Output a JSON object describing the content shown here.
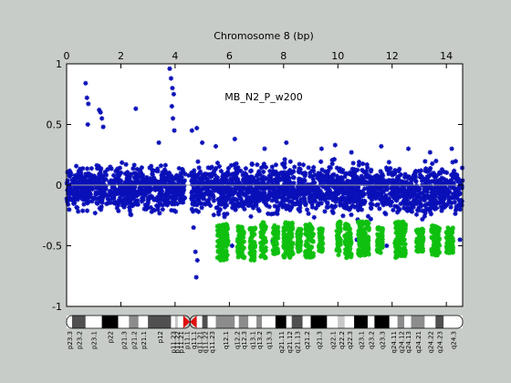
{
  "chart_data": {
    "type": "scatter",
    "title": "Chromosome 8 (bp)",
    "annotation": "MB_N2_P_w200",
    "xlabel": "Chromosome 8 (bp)",
    "xlim": [
      0,
      14.6
    ],
    "xticks": [
      0,
      2,
      4,
      6,
      8,
      10,
      12,
      14
    ],
    "ylim": [
      -1,
      1
    ],
    "yticks": [
      -1,
      -0.5,
      0,
      0.5,
      1
    ],
    "baseline": 0,
    "centromere_x": 4.55,
    "colors": {
      "background": "#c8ccc8",
      "plot_area": "#ffffff",
      "normal_points": "#0a10b8",
      "loss_points": "#10c010",
      "baseline": "#a0a0a0",
      "centromere": "#e01010"
    },
    "series": [
      {
        "color": "#0a10b8",
        "segments": [
          {
            "x": [
              0.0,
              4.4
            ],
            "y_range": [
              -0.28,
              0.22
            ]
          },
          {
            "x": [
              4.6,
              14.6
            ],
            "y_range": [
              -0.32,
              0.25
            ]
          }
        ],
        "outliers": [
          [
            0.7,
            0.84
          ],
          [
            0.75,
            0.72
          ],
          [
            0.8,
            0.67
          ],
          [
            0.78,
            0.5
          ],
          [
            1.2,
            0.62
          ],
          [
            1.25,
            0.6
          ],
          [
            1.3,
            0.55
          ],
          [
            1.35,
            0.48
          ],
          [
            2.55,
            0.63
          ],
          [
            3.8,
            0.96
          ],
          [
            3.85,
            0.88
          ],
          [
            3.9,
            0.8
          ],
          [
            3.95,
            0.75
          ],
          [
            3.88,
            0.65
          ],
          [
            3.92,
            0.55
          ],
          [
            3.97,
            0.45
          ],
          [
            3.4,
            0.35
          ],
          [
            4.62,
            0.45
          ],
          [
            4.8,
            0.47
          ],
          [
            4.7,
            0.12
          ],
          [
            4.5,
            0.08
          ],
          [
            4.68,
            -0.35
          ],
          [
            4.75,
            -0.55
          ],
          [
            4.82,
            -0.62
          ],
          [
            4.78,
            -0.76
          ],
          [
            5.0,
            0.35
          ],
          [
            5.5,
            0.32
          ],
          [
            6.2,
            0.38
          ],
          [
            7.3,
            0.3
          ],
          [
            8.1,
            0.35
          ],
          [
            9.4,
            0.3
          ],
          [
            9.9,
            0.33
          ],
          [
            10.5,
            0.27
          ],
          [
            11.6,
            0.32
          ],
          [
            12.6,
            0.3
          ],
          [
            13.4,
            0.27
          ],
          [
            14.2,
            0.3
          ],
          [
            6.1,
            -0.5
          ],
          [
            6.9,
            -0.55
          ],
          [
            7.6,
            -0.46
          ],
          [
            8.2,
            -0.48
          ],
          [
            10.7,
            -0.45
          ],
          [
            11.8,
            -0.5
          ],
          [
            13.0,
            -0.52
          ],
          [
            14.5,
            -0.45
          ]
        ]
      },
      {
        "color": "#10c010",
        "clusters": [
          {
            "x": [
              5.55,
              5.95
            ],
            "y_range": [
              -0.62,
              -0.32
            ]
          },
          {
            "x": [
              6.3,
              6.55
            ],
            "y_range": [
              -0.6,
              -0.33
            ]
          },
          {
            "x": [
              6.75,
              6.95
            ],
            "y_range": [
              -0.62,
              -0.35
            ]
          },
          {
            "x": [
              7.15,
              7.35
            ],
            "y_range": [
              -0.6,
              -0.3
            ]
          },
          {
            "x": [
              7.6,
              7.8
            ],
            "y_range": [
              -0.58,
              -0.33
            ]
          },
          {
            "x": [
              8.0,
              8.35
            ],
            "y_range": [
              -0.6,
              -0.3
            ]
          },
          {
            "x": [
              8.5,
              8.65
            ],
            "y_range": [
              -0.55,
              -0.35
            ]
          },
          {
            "x": [
              8.8,
              9.1
            ],
            "y_range": [
              -0.6,
              -0.32
            ]
          },
          {
            "x": [
              9.3,
              9.45
            ],
            "y_range": [
              -0.55,
              -0.35
            ]
          },
          {
            "x": [
              9.95,
              10.1
            ],
            "y_range": [
              -0.58,
              -0.3
            ]
          },
          {
            "x": [
              10.25,
              10.5
            ],
            "y_range": [
              -0.6,
              -0.32
            ]
          },
          {
            "x": [
              10.75,
              11.15
            ],
            "y_range": [
              -0.58,
              -0.3
            ]
          },
          {
            "x": [
              11.45,
              11.65
            ],
            "y_range": [
              -0.56,
              -0.35
            ]
          },
          {
            "x": [
              12.1,
              12.5
            ],
            "y_range": [
              -0.6,
              -0.3
            ]
          },
          {
            "x": [
              12.9,
              13.15
            ],
            "y_range": [
              -0.55,
              -0.35
            ]
          },
          {
            "x": [
              13.45,
              13.75
            ],
            "y_range": [
              -0.58,
              -0.33
            ]
          },
          {
            "x": [
              14.0,
              14.25
            ],
            "y_range": [
              -0.56,
              -0.35
            ]
          }
        ]
      }
    ],
    "ideogram": {
      "bands": [
        {
          "name": "p23.3",
          "x": [
            0.0,
            0.2
          ],
          "stain": "gneg"
        },
        {
          "name": "p23.2",
          "x": [
            0.2,
            0.7
          ],
          "stain": "gpos75"
        },
        {
          "name": "p23.1",
          "x": [
            0.7,
            1.3
          ],
          "stain": "gneg"
        },
        {
          "name": "p22",
          "x": [
            1.3,
            1.9
          ],
          "stain": "gpos100"
        },
        {
          "name": "p21.3",
          "x": [
            1.9,
            2.3
          ],
          "stain": "gneg"
        },
        {
          "name": "p21.2",
          "x": [
            2.3,
            2.65
          ],
          "stain": "gpos50"
        },
        {
          "name": "p21.1",
          "x": [
            2.65,
            3.0
          ],
          "stain": "gneg"
        },
        {
          "name": "p12",
          "x": [
            3.0,
            3.85
          ],
          "stain": "gpos75"
        },
        {
          "name": "p11.23",
          "x": [
            3.85,
            4.0
          ],
          "stain": "gneg"
        },
        {
          "name": "p11.22",
          "x": [
            4.0,
            4.1
          ],
          "stain": "gpos25"
        },
        {
          "name": "p11.21",
          "x": [
            4.1,
            4.3
          ],
          "stain": "gneg"
        },
        {
          "name": "p11.1",
          "x": [
            4.3,
            4.55
          ],
          "stain": "acen"
        },
        {
          "name": "q11.1",
          "x": [
            4.55,
            4.8
          ],
          "stain": "acen"
        },
        {
          "name": "q11.21",
          "x": [
            4.8,
            5.0
          ],
          "stain": "gneg"
        },
        {
          "name": "q11.22",
          "x": [
            5.0,
            5.2
          ],
          "stain": "gpos75"
        },
        {
          "name": "q11.23",
          "x": [
            5.2,
            5.5
          ],
          "stain": "gneg"
        },
        {
          "name": "q12.1",
          "x": [
            5.5,
            6.2
          ],
          "stain": "gpos50"
        },
        {
          "name": "q12.2",
          "x": [
            6.2,
            6.35
          ],
          "stain": "gneg"
        },
        {
          "name": "q12.3",
          "x": [
            6.35,
            6.7
          ],
          "stain": "gpos50"
        },
        {
          "name": "q13.1",
          "x": [
            6.7,
            7.0
          ],
          "stain": "gneg"
        },
        {
          "name": "q13.2",
          "x": [
            7.0,
            7.2
          ],
          "stain": "gpos50"
        },
        {
          "name": "q13.3",
          "x": [
            7.2,
            7.7
          ],
          "stain": "gneg"
        },
        {
          "name": "q21.11",
          "x": [
            7.7,
            8.1
          ],
          "stain": "gpos100"
        },
        {
          "name": "q21.12",
          "x": [
            8.1,
            8.3
          ],
          "stain": "gneg"
        },
        {
          "name": "q21.13",
          "x": [
            8.3,
            8.7
          ],
          "stain": "gpos75"
        },
        {
          "name": "q21.2",
          "x": [
            8.7,
            9.0
          ],
          "stain": "gneg"
        },
        {
          "name": "q21.3",
          "x": [
            9.0,
            9.6
          ],
          "stain": "gpos100"
        },
        {
          "name": "q22.1",
          "x": [
            9.6,
            10.0
          ],
          "stain": "gneg"
        },
        {
          "name": "q22.2",
          "x": [
            10.0,
            10.25
          ],
          "stain": "gpos25"
        },
        {
          "name": "q22.3",
          "x": [
            10.25,
            10.6
          ],
          "stain": "gneg"
        },
        {
          "name": "q23.1",
          "x": [
            10.6,
            11.1
          ],
          "stain": "gpos100"
        },
        {
          "name": "q23.2",
          "x": [
            11.1,
            11.35
          ],
          "stain": "gneg"
        },
        {
          "name": "q23.3",
          "x": [
            11.35,
            11.9
          ],
          "stain": "gpos100"
        },
        {
          "name": "q24.11",
          "x": [
            11.9,
            12.2
          ],
          "stain": "gneg"
        },
        {
          "name": "q24.12",
          "x": [
            12.2,
            12.45
          ],
          "stain": "gpos50"
        },
        {
          "name": "q24.13",
          "x": [
            12.45,
            12.7
          ],
          "stain": "gneg"
        },
        {
          "name": "q24.21",
          "x": [
            12.7,
            13.2
          ],
          "stain": "gpos50"
        },
        {
          "name": "q24.22",
          "x": [
            13.2,
            13.6
          ],
          "stain": "gneg"
        },
        {
          "name": "q24.23",
          "x": [
            13.6,
            13.9
          ],
          "stain": "gpos75"
        },
        {
          "name": "q24.3",
          "x": [
            13.9,
            14.6
          ],
          "stain": "gneg"
        }
      ],
      "stain_colors": {
        "gneg": "#ffffff",
        "gpos25": "#c8c8c8",
        "gpos50": "#8c8c8c",
        "gpos75": "#505050",
        "gpos100": "#000000",
        "acen": "#e01010"
      }
    }
  }
}
